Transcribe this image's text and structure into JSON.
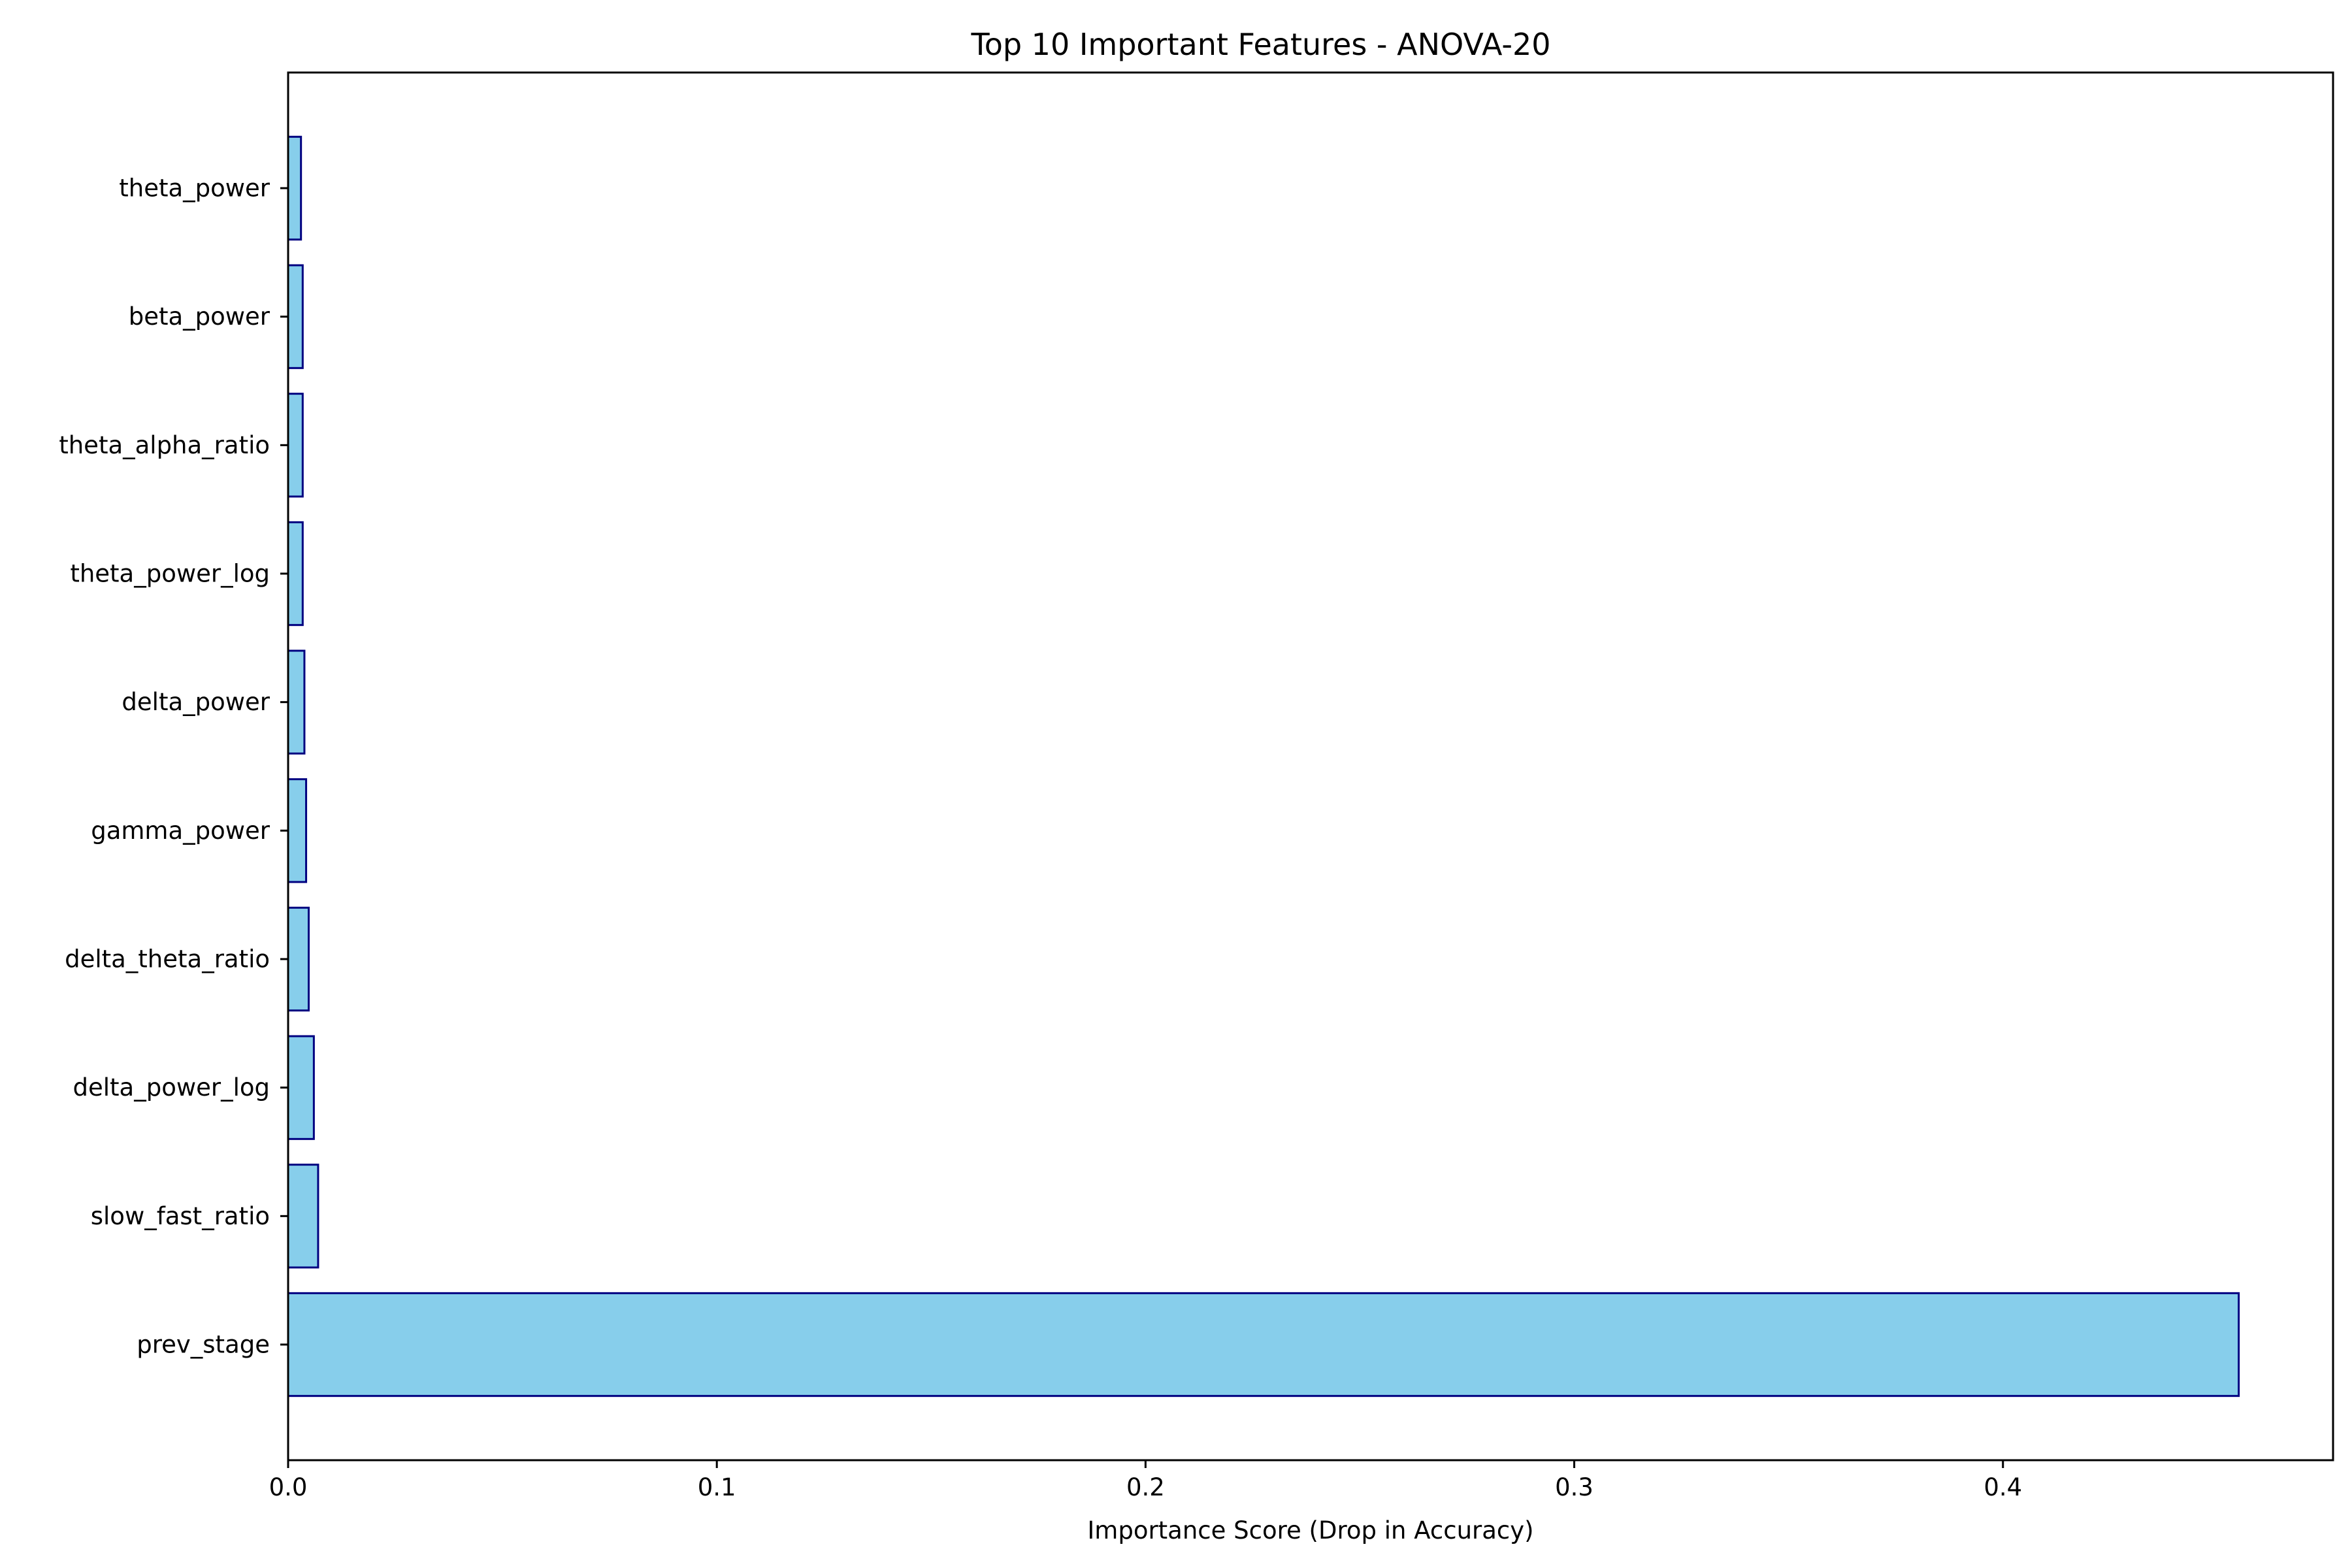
{
  "chart_data": {
    "type": "bar",
    "orientation": "horizontal",
    "title": "Top 10 Important Features - ANOVA-20",
    "xlabel": "Importance Score (Drop in Accuracy)",
    "ylabel": "",
    "xlim": [
      0,
      0.477
    ],
    "xticks": [
      0.0,
      0.1,
      0.2,
      0.3,
      0.4
    ],
    "xtick_labels": [
      "0.0",
      "0.1",
      "0.2",
      "0.3",
      "0.4"
    ],
    "grid": false,
    "legend": "none",
    "bar_fill": "#87CEEB",
    "bar_edge": "#000080",
    "categories": [
      "prev_stage",
      "slow_fast_ratio",
      "delta_power_log",
      "delta_theta_ratio",
      "gamma_power",
      "delta_power",
      "theta_power_log",
      "theta_alpha_ratio",
      "beta_power",
      "theta_power"
    ],
    "values": [
      0.455,
      0.007,
      0.006,
      0.0048,
      0.0042,
      0.0038,
      0.0034,
      0.0034,
      0.0034,
      0.003
    ]
  }
}
